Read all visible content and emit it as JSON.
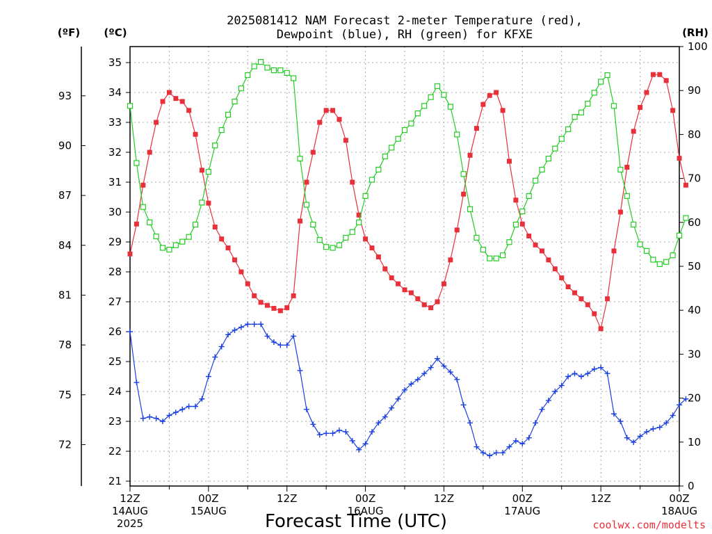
{
  "title_line1": "2025081412 NAM Forecast 2-meter Temperature (red),",
  "title_line2": "Dewpoint (blue), RH (green) for KFXE",
  "unit_f": "(ºF)",
  "unit_c": "(ºC)",
  "unit_rh": "(RH)",
  "xlabel": "Forecast Time (UTC)",
  "credit": "coolwx.com/modelts",
  "colors": {
    "temperature": "#e8303a",
    "dewpoint": "#1a3fe0",
    "rh": "#22cc22"
  },
  "chart_data": {
    "type": "line",
    "x_unit": "hours from 12Z 14AUG 2025 (3-hourly points shown hourly)",
    "x_ticks": [
      {
        "hour": 0,
        "line1": "12Z",
        "line2": "14AUG",
        "line3": "2025"
      },
      {
        "hour": 12,
        "line1": "00Z",
        "line2": "15AUG",
        "line3": ""
      },
      {
        "hour": 24,
        "line1": "12Z",
        "line2": "",
        "line3": ""
      },
      {
        "hour": 36,
        "line1": "00Z",
        "line2": "16AUG",
        "line3": ""
      },
      {
        "hour": 48,
        "line1": "12Z",
        "line2": "",
        "line3": ""
      },
      {
        "hour": 60,
        "line1": "00Z",
        "line2": "17AUG",
        "line3": ""
      },
      {
        "hour": 72,
        "line1": "12Z",
        "line2": "",
        "line3": ""
      },
      {
        "hour": 84,
        "line1": "00Z",
        "line2": "18AUG",
        "line3": ""
      }
    ],
    "xlim": [
      0,
      84
    ],
    "ylim_celsius": [
      21,
      35.3
    ],
    "y_ticks_celsius": [
      21,
      22,
      23,
      24,
      25,
      26,
      27,
      28,
      29,
      30,
      31,
      32,
      33,
      34,
      35
    ],
    "y_ticks_fahrenheit": [
      72,
      75,
      78,
      81,
      84,
      87,
      90,
      93
    ],
    "ylim_rh": [
      0,
      100
    ],
    "y_ticks_rh": [
      0,
      10,
      20,
      30,
      40,
      50,
      60,
      70,
      80,
      90,
      100
    ],
    "grid": true,
    "series": [
      {
        "name": "Temperature (red)",
        "axis": "celsius",
        "marker": "filled-square",
        "values": [
          28.6,
          29.6,
          30.9,
          32.0,
          33.0,
          33.7,
          34.0,
          33.8,
          33.7,
          33.4,
          32.6,
          31.4,
          30.3,
          29.5,
          29.1,
          28.8,
          28.4,
          28.0,
          27.6,
          27.2,
          26.98,
          26.88,
          26.78,
          26.7,
          26.8,
          27.2,
          29.7,
          31.0,
          32.0,
          33.0,
          33.4,
          33.4,
          33.1,
          32.4,
          31.0,
          29.9,
          29.1,
          28.8,
          28.5,
          28.1,
          27.8,
          27.6,
          27.4,
          27.3,
          27.1,
          26.9,
          26.8,
          27.0,
          27.6,
          28.4,
          29.4,
          30.6,
          31.9,
          32.8,
          33.6,
          33.9,
          34.0,
          33.4,
          31.7,
          30.4,
          29.6,
          29.2,
          28.9,
          28.7,
          28.4,
          28.1,
          27.8,
          27.5,
          27.3,
          27.1,
          26.9,
          26.6,
          26.1,
          27.1,
          28.7,
          30.0,
          31.5,
          32.7,
          33.5,
          34.0,
          34.6,
          34.6,
          34.4,
          33.4,
          31.8,
          30.9
        ]
      },
      {
        "name": "Dewpoint (blue)",
        "axis": "celsius",
        "marker": "plus",
        "values": [
          26.0,
          24.3,
          23.1,
          23.15,
          23.1,
          23.0,
          23.2,
          23.3,
          23.4,
          23.5,
          23.5,
          23.75,
          24.5,
          25.15,
          25.5,
          25.9,
          26.05,
          26.15,
          26.25,
          26.25,
          26.25,
          25.85,
          25.65,
          25.55,
          25.55,
          25.85,
          24.7,
          23.4,
          22.9,
          22.55,
          22.6,
          22.6,
          22.7,
          22.65,
          22.35,
          22.05,
          22.25,
          22.65,
          22.95,
          23.15,
          23.45,
          23.75,
          24.05,
          24.25,
          24.4,
          24.6,
          24.8,
          25.1,
          24.85,
          24.65,
          24.4,
          23.55,
          22.95,
          22.15,
          21.95,
          21.85,
          21.95,
          21.95,
          22.15,
          22.35,
          22.25,
          22.45,
          22.95,
          23.4,
          23.7,
          24.0,
          24.2,
          24.5,
          24.6,
          24.5,
          24.6,
          24.75,
          24.8,
          24.6,
          23.25,
          23.0,
          22.45,
          22.3,
          22.5,
          22.65,
          22.75,
          22.8,
          22.95,
          23.2,
          23.55,
          23.75
        ]
      },
      {
        "name": "RH (green)",
        "axis": "rh",
        "marker": "open-square",
        "values": [
          86.5,
          73.5,
          63.5,
          60.0,
          56.8,
          54.2,
          53.8,
          54.8,
          55.6,
          56.7,
          59.5,
          64.5,
          71.5,
          77.5,
          81.0,
          84.5,
          87.5,
          90.5,
          93.5,
          95.5,
          96.5,
          95.2,
          94.6,
          94.6,
          94.0,
          92.8,
          74.5,
          64.0,
          59.5,
          56.0,
          54.4,
          54.2,
          54.8,
          56.5,
          57.8,
          60.0,
          66.0,
          69.7,
          72.0,
          75.0,
          77.0,
          79.0,
          81.0,
          82.5,
          84.8,
          86.5,
          88.5,
          91.0,
          89.0,
          86.3,
          80.0,
          71.0,
          63.0,
          56.5,
          53.8,
          51.8,
          51.8,
          52.5,
          55.5,
          59.5,
          62.5,
          66.0,
          69.5,
          72.0,
          74.5,
          76.8,
          79.0,
          81.2,
          84.0,
          85.0,
          87.0,
          89.5,
          92.0,
          93.5,
          86.5,
          72.0,
          66.0,
          59.5,
          55.0,
          53.5,
          51.5,
          50.5,
          51.0,
          52.5,
          57.0,
          61.0
        ]
      }
    ]
  }
}
